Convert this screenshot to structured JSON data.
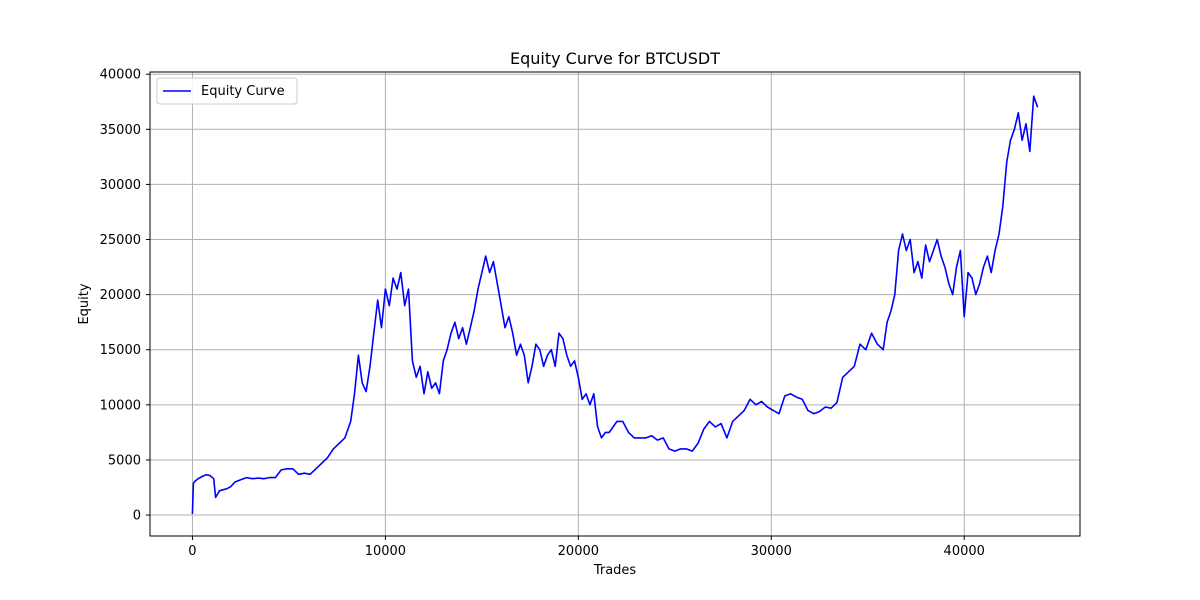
{
  "chart_data": {
    "type": "line",
    "title": "Equity Curve for BTCUSDT",
    "xlabel": "Trades",
    "ylabel": "Equity",
    "xlim": [
      -2200,
      46000
    ],
    "ylim": [
      -1900,
      40200
    ],
    "xticks": [
      0,
      10000,
      20000,
      30000,
      40000
    ],
    "xtick_labels": [
      "0",
      "10000",
      "20000",
      "30000",
      "40000"
    ],
    "yticks": [
      0,
      5000,
      10000,
      15000,
      20000,
      25000,
      30000,
      35000,
      40000
    ],
    "ytick_labels": [
      "0",
      "5000",
      "10000",
      "15000",
      "20000",
      "25000",
      "30000",
      "35000",
      "40000"
    ],
    "grid": true,
    "legend_position": "top-left",
    "series": [
      {
        "name": "Equity Curve",
        "color": "#0000ff",
        "x": [
          0,
          50,
          150,
          300,
          500,
          700,
          900,
          1100,
          1200,
          1400,
          1600,
          1800,
          2000,
          2200,
          2500,
          2800,
          3100,
          3400,
          3700,
          4000,
          4300,
          4600,
          4900,
          5200,
          5500,
          5800,
          6100,
          6400,
          6700,
          7000,
          7300,
          7600,
          7900,
          8200,
          8400,
          8600,
          8800,
          9000,
          9200,
          9400,
          9600,
          9800,
          10000,
          10200,
          10400,
          10600,
          10800,
          11000,
          11200,
          11400,
          11600,
          11800,
          12000,
          12200,
          12400,
          12600,
          12800,
          13000,
          13200,
          13400,
          13600,
          13800,
          14000,
          14200,
          14400,
          14600,
          14800,
          15000,
          15200,
          15400,
          15600,
          15800,
          16000,
          16200,
          16400,
          16600,
          16800,
          17000,
          17200,
          17400,
          17600,
          17800,
          18000,
          18200,
          18400,
          18600,
          18800,
          19000,
          19200,
          19400,
          19600,
          19800,
          20000,
          20200,
          20400,
          20600,
          20800,
          21000,
          21200,
          21400,
          21600,
          21800,
          22000,
          22300,
          22600,
          22900,
          23200,
          23500,
          23800,
          24100,
          24400,
          24700,
          25000,
          25300,
          25600,
          25900,
          26200,
          26500,
          26800,
          27100,
          27400,
          27700,
          28000,
          28300,
          28600,
          28900,
          29200,
          29500,
          29800,
          30100,
          30400,
          30700,
          31000,
          31300,
          31600,
          31900,
          32200,
          32500,
          32800,
          33100,
          33400,
          33700,
          34000,
          34300,
          34600,
          34900,
          35200,
          35500,
          35800,
          36000,
          36200,
          36400,
          36600,
          36800,
          37000,
          37200,
          37400,
          37600,
          37800,
          38000,
          38200,
          38400,
          38600,
          38800,
          39000,
          39200,
          39400,
          39600,
          39800,
          40000,
          40200,
          40400,
          40600,
          40800,
          41000,
          41200,
          41400,
          41600,
          41800,
          42000,
          42200,
          42400,
          42600,
          42800,
          43000,
          43200,
          43400,
          43600,
          43800
        ],
        "y": [
          100,
          2900,
          3100,
          3300,
          3500,
          3650,
          3600,
          3300,
          1600,
          2200,
          2300,
          2400,
          2600,
          3000,
          3200,
          3400,
          3300,
          3350,
          3300,
          3400,
          3400,
          4100,
          4200,
          4200,
          3700,
          3800,
          3700,
          4200,
          4700,
          5200,
          6000,
          6500,
          7000,
          8500,
          11000,
          14500,
          12000,
          11200,
          13500,
          16500,
          19500,
          17000,
          20500,
          19000,
          21500,
          20500,
          22000,
          19000,
          20500,
          14000,
          12500,
          13500,
          11000,
          13000,
          11500,
          12000,
          11000,
          14000,
          15000,
          16500,
          17500,
          16000,
          17000,
          15500,
          17000,
          18500,
          20500,
          22000,
          23500,
          22000,
          23000,
          21000,
          19000,
          17000,
          18000,
          16500,
          14500,
          15500,
          14500,
          12000,
          13500,
          15500,
          15000,
          13500,
          14500,
          15000,
          13500,
          16500,
          16000,
          14500,
          13500,
          14000,
          12500,
          10500,
          11000,
          10000,
          11000,
          8000,
          7000,
          7500,
          7500,
          8000,
          8500,
          8500,
          7500,
          7000,
          7000,
          7000,
          7200,
          6800,
          7000,
          6000,
          5800,
          6000,
          6000,
          5800,
          6500,
          7800,
          8500,
          8000,
          8300,
          7000,
          8500,
          9000,
          9500,
          10500,
          10000,
          10300,
          9800,
          9500,
          9200,
          10800,
          11000,
          10700,
          10500,
          9500,
          9200,
          9400,
          9800,
          9700,
          10200,
          12500,
          13000,
          13500,
          15500,
          15000,
          16500,
          15500,
          15000,
          17500,
          18500,
          20000,
          24000,
          25500,
          24000,
          25000,
          22000,
          23000,
          21500,
          24500,
          23000,
          24000,
          25000,
          23500,
          22500,
          21000,
          20000,
          22500,
          24000,
          18000,
          22000,
          21500,
          20000,
          21000,
          22500,
          23500,
          22000,
          24000,
          25500,
          28000,
          32000,
          34000,
          35000,
          36500,
          34000,
          35500,
          33000,
          38000,
          37000
        ]
      }
    ]
  }
}
